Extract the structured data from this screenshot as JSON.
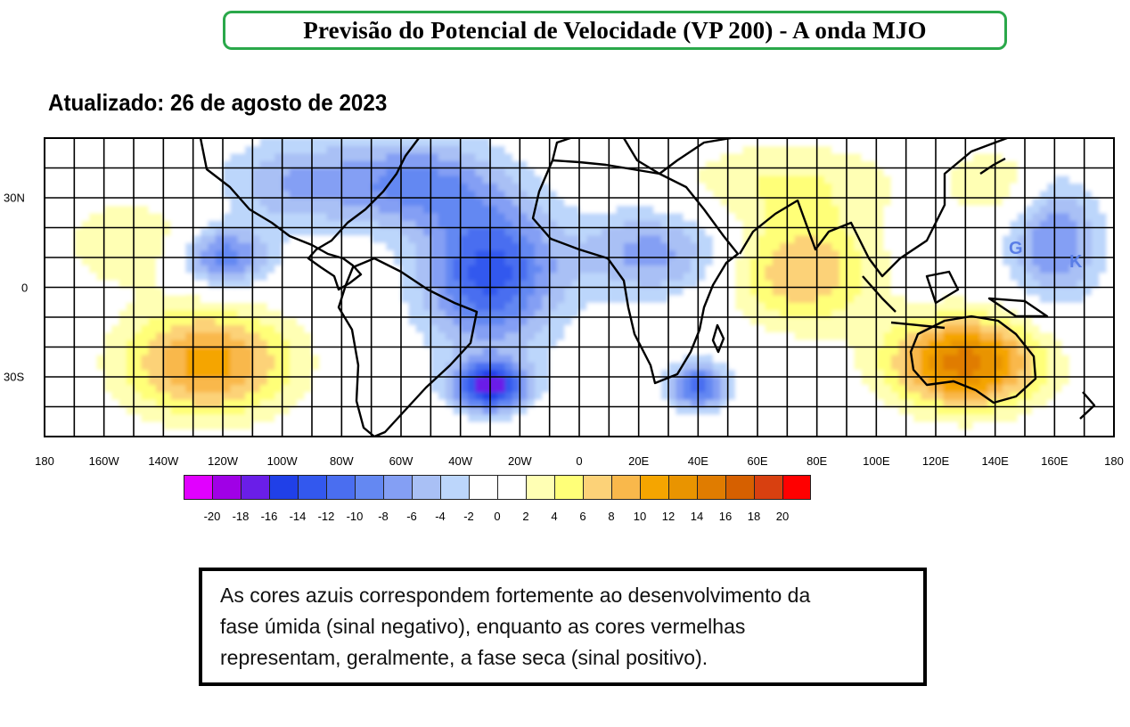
{
  "header": {
    "title": "Previsão do Potencial de Velocidade (VP 200) - A onda MJO",
    "updated": "Atualizado: 26 de agosto de 2023"
  },
  "map": {
    "longitude_labels": [
      "180",
      "160W",
      "140W",
      "120W",
      "100W",
      "80W",
      "60W",
      "40W",
      "20W",
      "0",
      "20E",
      "40E",
      "60E",
      "80E",
      "100E",
      "120E",
      "140E",
      "160E",
      "180"
    ],
    "latitude_labels": [
      "30N",
      "0",
      "30S"
    ],
    "extent": {
      "lon": [
        -180,
        180
      ],
      "lat": [
        -50,
        50
      ]
    },
    "overlay_letters": [
      "G",
      "K"
    ],
    "anomalies": [
      {
        "lon": -125,
        "lat": -25,
        "value": 11,
        "spread_lon": 28,
        "spread_lat": 18
      },
      {
        "lon": -150,
        "lat": 15,
        "value": 4,
        "spread_lon": 25,
        "spread_lat": 15
      },
      {
        "lon": -120,
        "lat": 10,
        "value": -10,
        "spread_lon": 15,
        "spread_lat": 10
      },
      {
        "lon": -95,
        "lat": 35,
        "value": -6,
        "spread_lon": 25,
        "spread_lat": 15
      },
      {
        "lon": -30,
        "lat": 5,
        "value": -13,
        "spread_lon": 22,
        "spread_lat": 25
      },
      {
        "lon": -30,
        "lat": -33,
        "value": -17,
        "spread_lon": 12,
        "spread_lat": 8
      },
      {
        "lon": -55,
        "lat": 35,
        "value": -8,
        "spread_lon": 25,
        "spread_lat": 15
      },
      {
        "lon": 25,
        "lat": 12,
        "value": -7,
        "spread_lon": 25,
        "spread_lat": 15
      },
      {
        "lon": 40,
        "lat": -33,
        "value": -11,
        "spread_lon": 10,
        "spread_lat": 8
      },
      {
        "lon": 70,
        "lat": 35,
        "value": 4,
        "spread_lon": 40,
        "spread_lat": 15
      },
      {
        "lon": 75,
        "lat": 5,
        "value": 8,
        "spread_lon": 25,
        "spread_lat": 18
      },
      {
        "lon": 130,
        "lat": -25,
        "value": 15,
        "spread_lon": 25,
        "spread_lat": 15
      },
      {
        "lon": 160,
        "lat": 15,
        "value": -8,
        "spread_lon": 15,
        "spread_lat": 20
      },
      {
        "lon": 140,
        "lat": 35,
        "value": 4,
        "spread_lon": 15,
        "spread_lat": 12
      }
    ]
  },
  "colorbar": {
    "labels": [
      "-20",
      "-18",
      "-16",
      "-14",
      "-12",
      "-10",
      "-8",
      "-6",
      "-4",
      "-2",
      "0",
      "2",
      "4",
      "6",
      "8",
      "10",
      "12",
      "14",
      "16",
      "18",
      "20"
    ],
    "colors": [
      "#e100ff",
      "#a000e6",
      "#6a1ee8",
      "#2040e8",
      "#3358ee",
      "#4a6ef0",
      "#6488f2",
      "#849ff4",
      "#a9c0f5",
      "#bcd6fb",
      "#ffffff",
      "#ffffff",
      "#ffffb4",
      "#ffff78",
      "#fcd278",
      "#f9b84b",
      "#f5a500",
      "#e99400",
      "#e07c00",
      "#d66000",
      "#d84010",
      "#ff0000"
    ]
  },
  "note": {
    "lines": [
      "As cores azuis correspondem fortemente ao desenvolvimento da",
      "fase úmida (sinal negativo), enquanto as cores vermelhas",
      "representam, geralmente, a fase seca (sinal positivo)."
    ]
  }
}
